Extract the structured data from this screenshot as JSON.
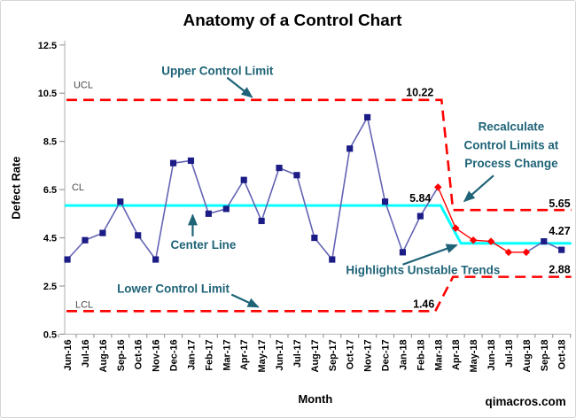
{
  "watermark": "qimacros.com",
  "colors": {
    "series_line": "#6363B4",
    "marker": "#1C1C86",
    "unstable": "#FF0000",
    "center_line": "#00FFFF",
    "control_limit": "#FF0000",
    "annotation": "#1E6377",
    "axis_line": "#BFBFBF",
    "tick": "#9A9A9A",
    "abbr_text": "#4A4A4A"
  },
  "chart_data": {
    "type": "line",
    "title": "Anatomy of a Control Chart",
    "xlabel": "Month",
    "ylabel": "Defect Rate",
    "ylim": [
      0.5,
      12.5
    ],
    "y_tick_step": 2,
    "y_tick_labels": [
      "12.5",
      "10.5",
      "8.5",
      "6.5",
      "4.5",
      "2.5",
      "0.5"
    ],
    "grid": "off",
    "legend": "none",
    "categories": [
      "Jun-16",
      "Jul-16",
      "Aug-16",
      "Sep-16",
      "Oct-16",
      "Nov-16",
      "Dec-16",
      "Jan-17",
      "Feb-17",
      "Mar-17",
      "Apr-17",
      "May-17",
      "Jun-17",
      "Jul-17",
      "Aug-17",
      "Sep-17",
      "Oct-17",
      "Nov-17",
      "Dec-17",
      "Jan-18",
      "Feb-18",
      "Mar-18",
      "Apr-18",
      "May-18",
      "Jun-18",
      "Jul-18",
      "Aug-18",
      "Sep-18",
      "Oct-18"
    ],
    "series": [
      {
        "name": "Defect Rate",
        "values": [
          3.6,
          4.4,
          4.7,
          6.0,
          4.6,
          3.6,
          7.6,
          7.7,
          5.5,
          5.7,
          6.9,
          5.2,
          7.4,
          7.1,
          4.5,
          3.6,
          8.2,
          9.5,
          6.0,
          3.9,
          5.4,
          6.6,
          4.9,
          4.4,
          4.35,
          3.9,
          3.9,
          4.35,
          4.0
        ]
      }
    ],
    "unstable_indices": [
      21,
      22,
      23,
      24,
      25,
      26
    ],
    "control_limits": {
      "phase1": {
        "ucl": 10.22,
        "cl": 5.84,
        "lcl": 1.46
      },
      "phase2": {
        "ucl": 5.65,
        "cl": 4.27,
        "lcl": 2.88
      },
      "change_at": "Mar-18"
    },
    "limit_labels": {
      "p1_ucl": "10.22",
      "p1_cl": "5.84",
      "p1_lcl": "1.46",
      "p2_ucl": "5.65",
      "p2_cl": "4.27",
      "p2_lcl": "2.88",
      "ucl": "UCL",
      "cl": "CL",
      "lcl": "LCL"
    },
    "annotations": {
      "upper": "Upper Control Limit",
      "center": "Center Line",
      "lower": "Lower Control Limit",
      "highlights": "Highlights Unstable Trends",
      "recalc1": "Recalculate",
      "recalc2": "Control Limits at",
      "recalc3": "Process Change"
    }
  }
}
